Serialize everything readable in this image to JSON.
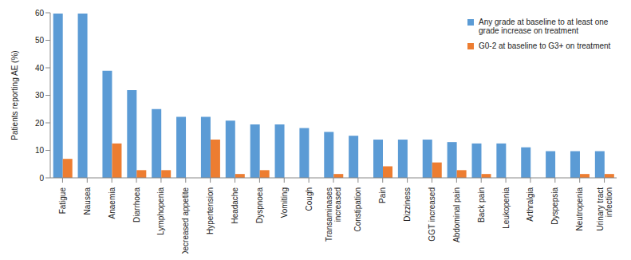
{
  "chart_data": {
    "type": "bar",
    "y_label": "Patients reporting AE (%)",
    "categories": [
      "Fatigue",
      "Nausea",
      "Anaemia",
      "Diarrhoea",
      "Lymphopenia",
      "Decreased appetite",
      "Hypertension",
      "Headache",
      "Dyspnoea",
      "Vomiting",
      "Cough",
      "Transaminases increased",
      "Constipation",
      "Pain",
      "Dizziness",
      "GGT increased",
      "Abdominal pain",
      "Back pain",
      "Leukopenia",
      "Arthralgia",
      "Dyspepsia",
      "Neutropenia",
      "Urinary tract infection"
    ],
    "series": [
      {
        "name": "Any grade at baseline to at least one grade increase on treatment",
        "color": "#5b9bd5",
        "values": [
          59.7,
          59.7,
          38.9,
          31.9,
          25,
          22.2,
          22.2,
          20.8,
          19.4,
          19.4,
          18.1,
          16.7,
          15.3,
          13.9,
          13.9,
          13.9,
          13,
          12.5,
          12.5,
          11.1,
          9.7,
          9.7,
          9.7
        ]
      },
      {
        "name": "G0-2 at baseline to G3+ on treatment",
        "color": "#ed7d31",
        "values": [
          6.9,
          0,
          12.5,
          2.8,
          2.8,
          0,
          13.9,
          1.4,
          2.8,
          0,
          0,
          1.4,
          0,
          4.2,
          0,
          5.6,
          2.8,
          1.4,
          0,
          0,
          0,
          1.4,
          1.4
        ]
      }
    ],
    "ylim": [
      0,
      60
    ],
    "yticks": [
      0,
      10,
      20,
      30,
      40,
      50,
      60
    ],
    "grid": false,
    "legend": "top-right"
  }
}
